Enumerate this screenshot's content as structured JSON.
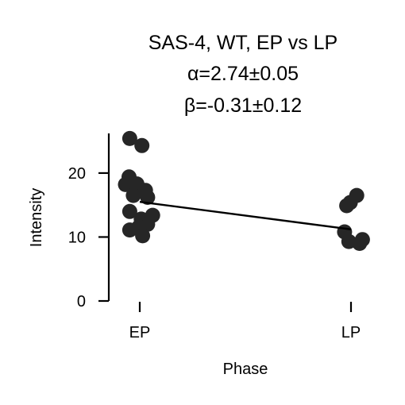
{
  "chart_data": {
    "type": "scatter",
    "title_lines": [
      "SAS-4, WT, EP vs LP",
      "α=2.74±0.05",
      "β=-0.31±0.12"
    ],
    "xlabel": "Phase",
    "ylabel": "Intensity",
    "categories": [
      "EP",
      "LP"
    ],
    "yticks": [
      "0",
      "10",
      "20"
    ],
    "ylim": [
      0,
      26.2
    ],
    "grid": false,
    "legend": "none",
    "points": [
      {
        "category": "EP",
        "jitter": -0.14,
        "y": 25.4
      },
      {
        "category": "EP",
        "jitter": 0.03,
        "y": 24.3
      },
      {
        "category": "EP",
        "jitter": -0.15,
        "y": 19.4
      },
      {
        "category": "EP",
        "jitter": -0.2,
        "y": 18.2
      },
      {
        "category": "EP",
        "jitter": -0.04,
        "y": 18.3
      },
      {
        "category": "EP",
        "jitter": 0.08,
        "y": 17.3
      },
      {
        "category": "EP",
        "jitter": -0.09,
        "y": 16.5
      },
      {
        "category": "EP",
        "jitter": 0.11,
        "y": 16.2
      },
      {
        "category": "EP",
        "jitter": -0.14,
        "y": 14.0
      },
      {
        "category": "EP",
        "jitter": 0.02,
        "y": 12.8
      },
      {
        "category": "EP",
        "jitter": 0.18,
        "y": 13.4
      },
      {
        "category": "EP",
        "jitter": 0.11,
        "y": 12.0
      },
      {
        "category": "EP",
        "jitter": -0.01,
        "y": 11.6
      },
      {
        "category": "EP",
        "jitter": -0.14,
        "y": 11.1
      },
      {
        "category": "EP",
        "jitter": 0.04,
        "y": 10.2
      },
      {
        "category": "LP",
        "jitter": -0.06,
        "y": 14.9
      },
      {
        "category": "LP",
        "jitter": -0.01,
        "y": 15.4
      },
      {
        "category": "LP",
        "jitter": 0.08,
        "y": 16.5
      },
      {
        "category": "LP",
        "jitter": -0.09,
        "y": 10.8
      },
      {
        "category": "LP",
        "jitter": -0.03,
        "y": 9.3
      },
      {
        "category": "LP",
        "jitter": 0.12,
        "y": 9.0
      },
      {
        "category": "LP",
        "jitter": 0.16,
        "y": 9.6
      }
    ],
    "fit_line": {
      "x": [
        "EP",
        "LP"
      ],
      "y": [
        15.5,
        11.2
      ]
    },
    "colors": {
      "points": "#262626",
      "line": "#000000"
    }
  }
}
